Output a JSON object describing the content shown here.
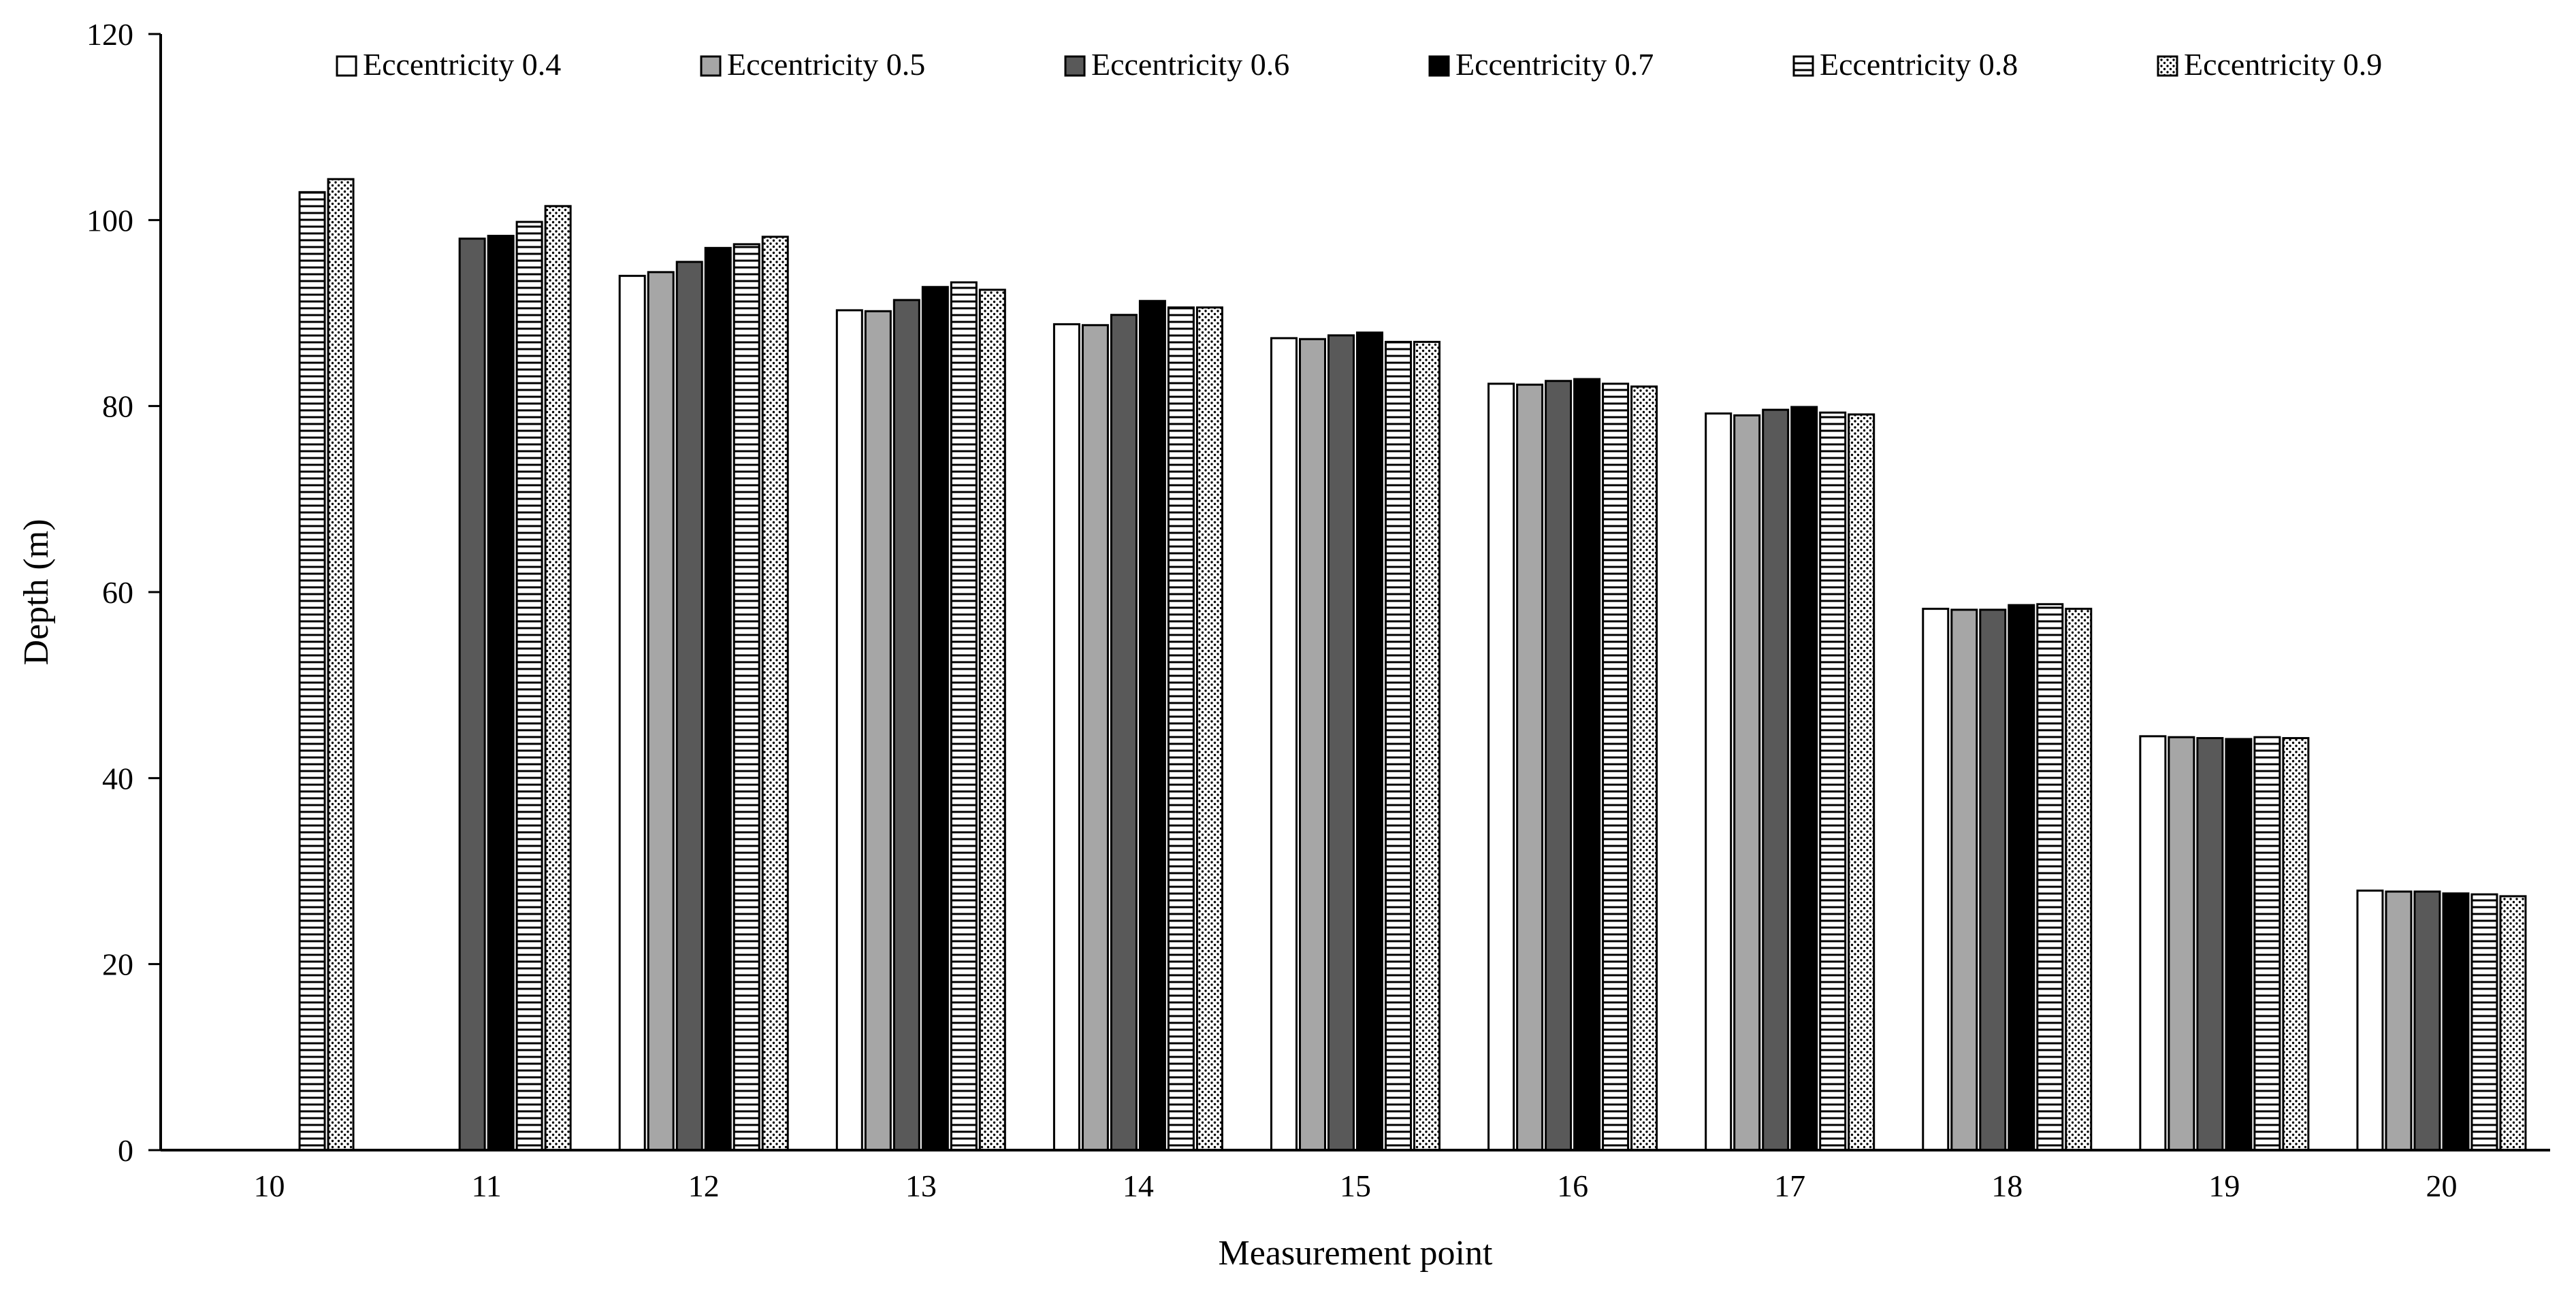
{
  "chart_data": {
    "type": "bar",
    "title": "",
    "xlabel": "Measurement point",
    "ylabel": "Depth (m)",
    "ylim": [
      0,
      120
    ],
    "yticks": [
      0,
      20,
      40,
      60,
      80,
      100,
      120
    ],
    "grid": false,
    "legend_position": "top",
    "categories": [
      "10",
      "11",
      "12",
      "13",
      "14",
      "15",
      "16",
      "17",
      "18",
      "19",
      "20"
    ],
    "series": [
      {
        "name": "Eccentricity 0.4",
        "pattern": "white",
        "values": [
          null,
          null,
          94.0,
          90.3,
          88.8,
          87.3,
          82.4,
          79.2,
          58.2,
          44.5,
          27.9
        ]
      },
      {
        "name": "Eccentricity 0.5",
        "pattern": "light-gray",
        "values": [
          null,
          null,
          94.4,
          90.2,
          88.7,
          87.2,
          82.3,
          79.0,
          58.1,
          44.4,
          27.8
        ]
      },
      {
        "name": "Eccentricity 0.6",
        "pattern": "dark-gray",
        "values": [
          null,
          98.0,
          95.5,
          91.4,
          89.8,
          87.6,
          82.7,
          79.6,
          58.1,
          44.3,
          27.8
        ]
      },
      {
        "name": "Eccentricity 0.7",
        "pattern": "black",
        "values": [
          null,
          98.3,
          97.0,
          92.8,
          91.3,
          87.9,
          82.9,
          79.9,
          58.6,
          44.2,
          27.6
        ]
      },
      {
        "name": "Eccentricity 0.8",
        "pattern": "horizontal-lines",
        "values": [
          103.0,
          99.8,
          97.4,
          93.3,
          90.6,
          86.9,
          82.4,
          79.3,
          58.7,
          44.4,
          27.5
        ]
      },
      {
        "name": "Eccentricity 0.9",
        "pattern": "dotted",
        "values": [
          104.4,
          101.5,
          98.2,
          92.5,
          90.6,
          86.9,
          82.1,
          79.1,
          58.2,
          44.3,
          27.3
        ]
      }
    ]
  }
}
